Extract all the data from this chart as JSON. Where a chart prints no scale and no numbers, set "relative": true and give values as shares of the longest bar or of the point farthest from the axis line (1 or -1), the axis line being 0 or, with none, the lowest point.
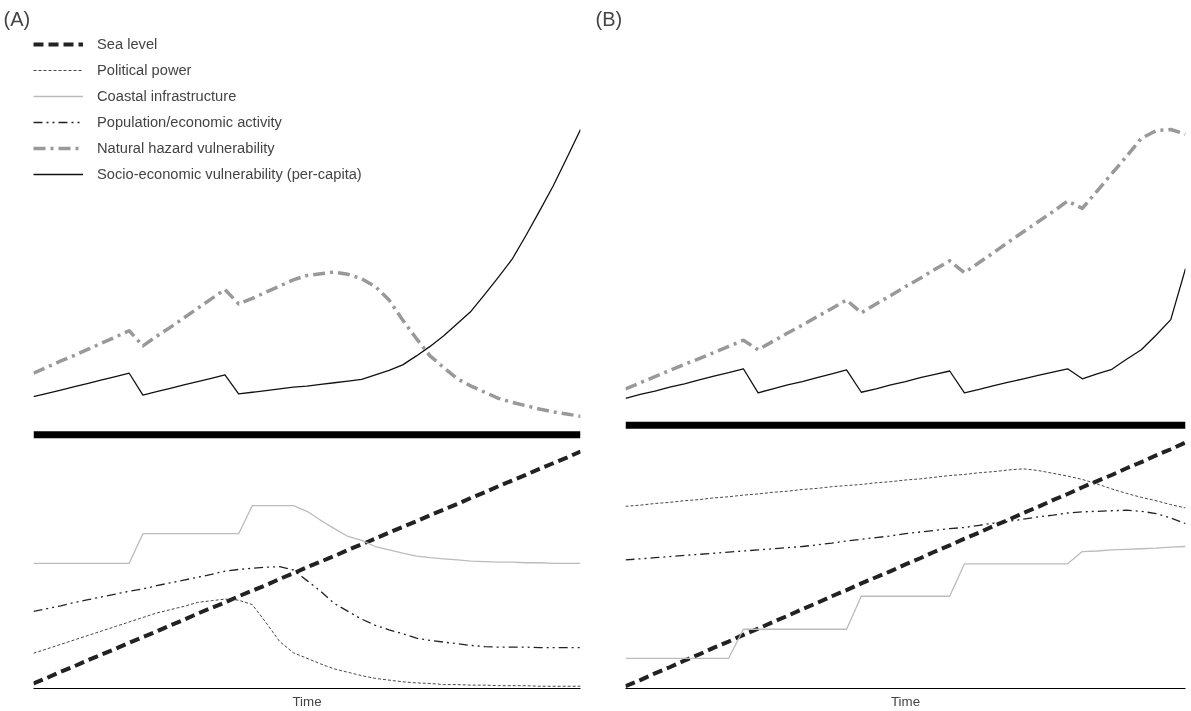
{
  "chart_data": [
    {
      "type": "line",
      "title": "(A)",
      "xlabel": "Time",
      "relative": true,
      "grid": false,
      "legend": "top left",
      "ref_lines": [
        {
          "axis": "y",
          "value": 0.454,
          "color": "#000000"
        }
      ],
      "categories": [
        null,
        null,
        null,
        null,
        null,
        null,
        null,
        null,
        null,
        null,
        null,
        null,
        null,
        null,
        null,
        null,
        null,
        null,
        null,
        null,
        null,
        null,
        null,
        null,
        null,
        null,
        null,
        null,
        null,
        null,
        null,
        null,
        null,
        null,
        null,
        null,
        null,
        null,
        null,
        null,
        null
      ],
      "series": [
        {
          "name": "Sea level",
          "color": "#222222",
          "line_style": "dashed",
          "values": [
            0.009,
            0.019,
            0.03,
            0.04,
            0.051,
            0.061,
            0.071,
            0.082,
            0.092,
            0.102,
            0.113,
            0.123,
            0.134,
            0.144,
            0.154,
            0.165,
            0.175,
            0.185,
            0.196,
            0.206,
            0.217,
            0.227,
            0.237,
            0.248,
            0.258,
            0.268,
            0.279,
            0.289,
            0.299,
            0.31,
            0.32,
            0.33,
            0.341,
            0.351,
            0.362,
            0.372,
            0.382,
            0.393,
            0.403,
            0.413,
            0.424
          ]
        },
        {
          "name": "Political power",
          "color": "#333333",
          "line_style": "dotted",
          "values": [
            0.063,
            0.071,
            0.079,
            0.087,
            0.095,
            0.103,
            0.111,
            0.119,
            0.127,
            0.135,
            0.141,
            0.147,
            0.154,
            0.157,
            0.16,
            0.158,
            0.15,
            0.118,
            0.084,
            0.064,
            0.054,
            0.044,
            0.035,
            0.029,
            0.023,
            0.018,
            0.015,
            0.012,
            0.01,
            0.009,
            0.007,
            0.007,
            0.006,
            0.006,
            0.005,
            0.005,
            0.005,
            0.004,
            0.004,
            0.004,
            0.004
          ]
        },
        {
          "name": "Coastal infrastructure",
          "color": "#bbbbbb",
          "line_style": "solid",
          "values": [
            0.224,
            0.224,
            0.224,
            0.224,
            0.224,
            0.224,
            0.224,
            0.224,
            0.277,
            0.277,
            0.277,
            0.277,
            0.277,
            0.277,
            0.277,
            0.277,
            0.327,
            0.327,
            0.327,
            0.327,
            0.317,
            0.301,
            0.286,
            0.272,
            0.265,
            0.254,
            0.248,
            0.242,
            0.237,
            0.234,
            0.232,
            0.23,
            0.228,
            0.227,
            0.226,
            0.226,
            0.225,
            0.225,
            0.224,
            0.224,
            0.224
          ]
        },
        {
          "name": "Population/economic activity",
          "color": "#222222",
          "line_style": "dashdotdot",
          "values": [
            0.138,
            0.143,
            0.148,
            0.154,
            0.159,
            0.164,
            0.169,
            0.174,
            0.178,
            0.184,
            0.189,
            0.194,
            0.199,
            0.204,
            0.21,
            0.213,
            0.215,
            0.217,
            0.218,
            0.212,
            0.193,
            0.174,
            0.152,
            0.138,
            0.124,
            0.113,
            0.105,
            0.098,
            0.09,
            0.086,
            0.083,
            0.08,
            0.077,
            0.075,
            0.074,
            0.074,
            0.074,
            0.073,
            0.073,
            0.073,
            0.073
          ]
        },
        {
          "name": "Natural hazard vulnerability",
          "color": "#999999",
          "line_style": "dashdot",
          "values": [
            0.564,
            0.575,
            0.586,
            0.596,
            0.607,
            0.618,
            0.629,
            0.64,
            0.613,
            0.63,
            0.646,
            0.663,
            0.68,
            0.697,
            0.714,
            0.688,
            0.698,
            0.709,
            0.72,
            0.731,
            0.739,
            0.742,
            0.745,
            0.741,
            0.733,
            0.719,
            0.695,
            0.659,
            0.626,
            0.595,
            0.574,
            0.554,
            0.541,
            0.53,
            0.519,
            0.512,
            0.506,
            0.5,
            0.495,
            0.491,
            0.487
          ]
        },
        {
          "name": "Socio-economic vulnerability (per-capita)",
          "color": "#111111",
          "line_style": "solid",
          "values": [
            0.522,
            0.528,
            0.534,
            0.54,
            0.546,
            0.552,
            0.558,
            0.564,
            0.525,
            0.531,
            0.537,
            0.543,
            0.549,
            0.555,
            0.561,
            0.527,
            0.53,
            0.533,
            0.536,
            0.539,
            0.541,
            0.544,
            0.547,
            0.55,
            0.553,
            0.561,
            0.569,
            0.579,
            0.595,
            0.612,
            0.631,
            0.653,
            0.675,
            0.705,
            0.736,
            0.768,
            0.81,
            0.854,
            0.899,
            0.949,
            1.0
          ]
        }
      ]
    },
    {
      "type": "line",
      "title": "(B)",
      "xlabel": "Time",
      "relative": true,
      "grid": false,
      "ref_lines": [
        {
          "axis": "y",
          "value": 0.471,
          "color": "#000000"
        }
      ],
      "categories": [
        null,
        null,
        null,
        null,
        null,
        null,
        null,
        null,
        null,
        null,
        null,
        null,
        null,
        null,
        null,
        null,
        null,
        null,
        null,
        null,
        null,
        null,
        null,
        null,
        null,
        null,
        null,
        null,
        null,
        null,
        null,
        null,
        null,
        null,
        null,
        null,
        null,
        null,
        null
      ],
      "series": [
        {
          "color": "#222222",
          "line_style": "dashed",
          "values": [
            0.004,
            0.015,
            0.027,
            0.038,
            0.05,
            0.061,
            0.073,
            0.084,
            0.096,
            0.107,
            0.119,
            0.13,
            0.142,
            0.153,
            0.165,
            0.176,
            0.188,
            0.199,
            0.21,
            0.222,
            0.233,
            0.245,
            0.256,
            0.268,
            0.279,
            0.291,
            0.302,
            0.314,
            0.325,
            0.337,
            0.348,
            0.36,
            0.371,
            0.382,
            0.394,
            0.405,
            0.417,
            0.428,
            0.44
          ]
        },
        {
          "color": "#333333",
          "line_style": "dotted",
          "values": [
            0.326,
            0.328,
            0.331,
            0.333,
            0.336,
            0.338,
            0.341,
            0.343,
            0.346,
            0.348,
            0.351,
            0.353,
            0.356,
            0.358,
            0.361,
            0.363,
            0.365,
            0.368,
            0.37,
            0.373,
            0.375,
            0.378,
            0.381,
            0.383,
            0.386,
            0.388,
            0.391,
            0.393,
            0.39,
            0.385,
            0.38,
            0.374,
            0.366,
            0.357,
            0.349,
            0.342,
            0.336,
            0.329,
            0.323
          ]
        },
        {
          "color": "#bbbbbb",
          "line_style": "solid",
          "values": [
            0.054,
            0.054,
            0.054,
            0.054,
            0.054,
            0.054,
            0.054,
            0.054,
            0.106,
            0.106,
            0.106,
            0.106,
            0.106,
            0.106,
            0.106,
            0.106,
            0.165,
            0.165,
            0.165,
            0.165,
            0.165,
            0.165,
            0.165,
            0.223,
            0.223,
            0.223,
            0.223,
            0.223,
            0.223,
            0.223,
            0.223,
            0.245,
            0.246,
            0.248,
            0.249,
            0.25,
            0.251,
            0.253,
            0.254
          ]
        },
        {
          "color": "#222222",
          "line_style": "dashdotdot",
          "values": [
            0.23,
            0.232,
            0.234,
            0.236,
            0.238,
            0.24,
            0.242,
            0.244,
            0.246,
            0.248,
            0.25,
            0.252,
            0.254,
            0.257,
            0.26,
            0.264,
            0.267,
            0.27,
            0.273,
            0.277,
            0.28,
            0.283,
            0.286,
            0.288,
            0.292,
            0.296,
            0.299,
            0.303,
            0.307,
            0.31,
            0.314,
            0.316,
            0.317,
            0.318,
            0.319,
            0.317,
            0.313,
            0.305,
            0.295
          ]
        },
        {
          "color": "#999999",
          "line_style": "dashdot",
          "values": [
            0.536,
            0.547,
            0.558,
            0.569,
            0.58,
            0.59,
            0.601,
            0.612,
            0.623,
            0.606,
            0.621,
            0.636,
            0.65,
            0.665,
            0.68,
            0.695,
            0.672,
            0.688,
            0.703,
            0.719,
            0.734,
            0.75,
            0.765,
            0.744,
            0.762,
            0.78,
            0.799,
            0.817,
            0.835,
            0.853,
            0.872,
            0.859,
            0.89,
            0.921,
            0.952,
            0.984,
            0.998,
            1.0,
            0.992
          ]
        },
        {
          "color": "#111111",
          "line_style": "solid",
          "values": [
            0.519,
            0.526,
            0.532,
            0.539,
            0.545,
            0.552,
            0.559,
            0.565,
            0.572,
            0.529,
            0.536,
            0.543,
            0.549,
            0.556,
            0.563,
            0.57,
            0.53,
            0.536,
            0.543,
            0.549,
            0.556,
            0.562,
            0.568,
            0.529,
            0.535,
            0.542,
            0.548,
            0.554,
            0.56,
            0.566,
            0.572,
            0.554,
            0.563,
            0.571,
            0.589,
            0.606,
            0.632,
            0.66,
            0.751
          ]
        }
      ]
    }
  ]
}
